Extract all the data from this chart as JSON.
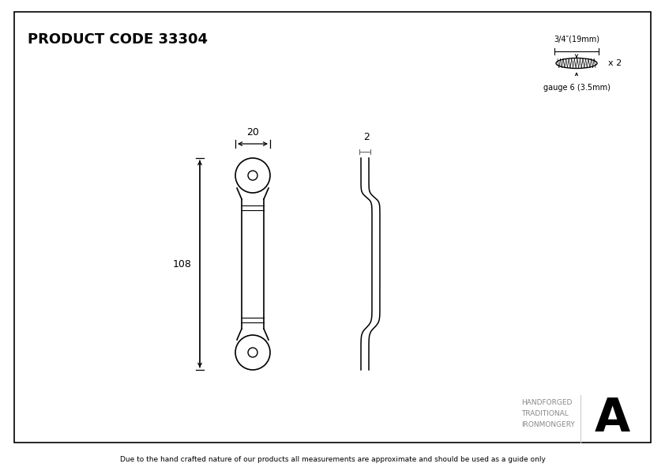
{
  "title": "PRODUCT CODE 33304",
  "background_color": "#ffffff",
  "border_color": "#000000",
  "line_color": "#000000",
  "footer_text": "Due to the hand crafted nature of our products all measurements are approximate and should be used as a guide only",
  "brand_line1": "HANDFORGED",
  "brand_line2": "TRADITIONAL",
  "brand_line3": "IRONMONGERY",
  "screw_label": "3/4″(19mm)",
  "screw_x2": "x 2",
  "gauge_label": "gauge 6 (3.5mm)",
  "dim_width": "20",
  "dim_height": "108",
  "side_label": "2"
}
